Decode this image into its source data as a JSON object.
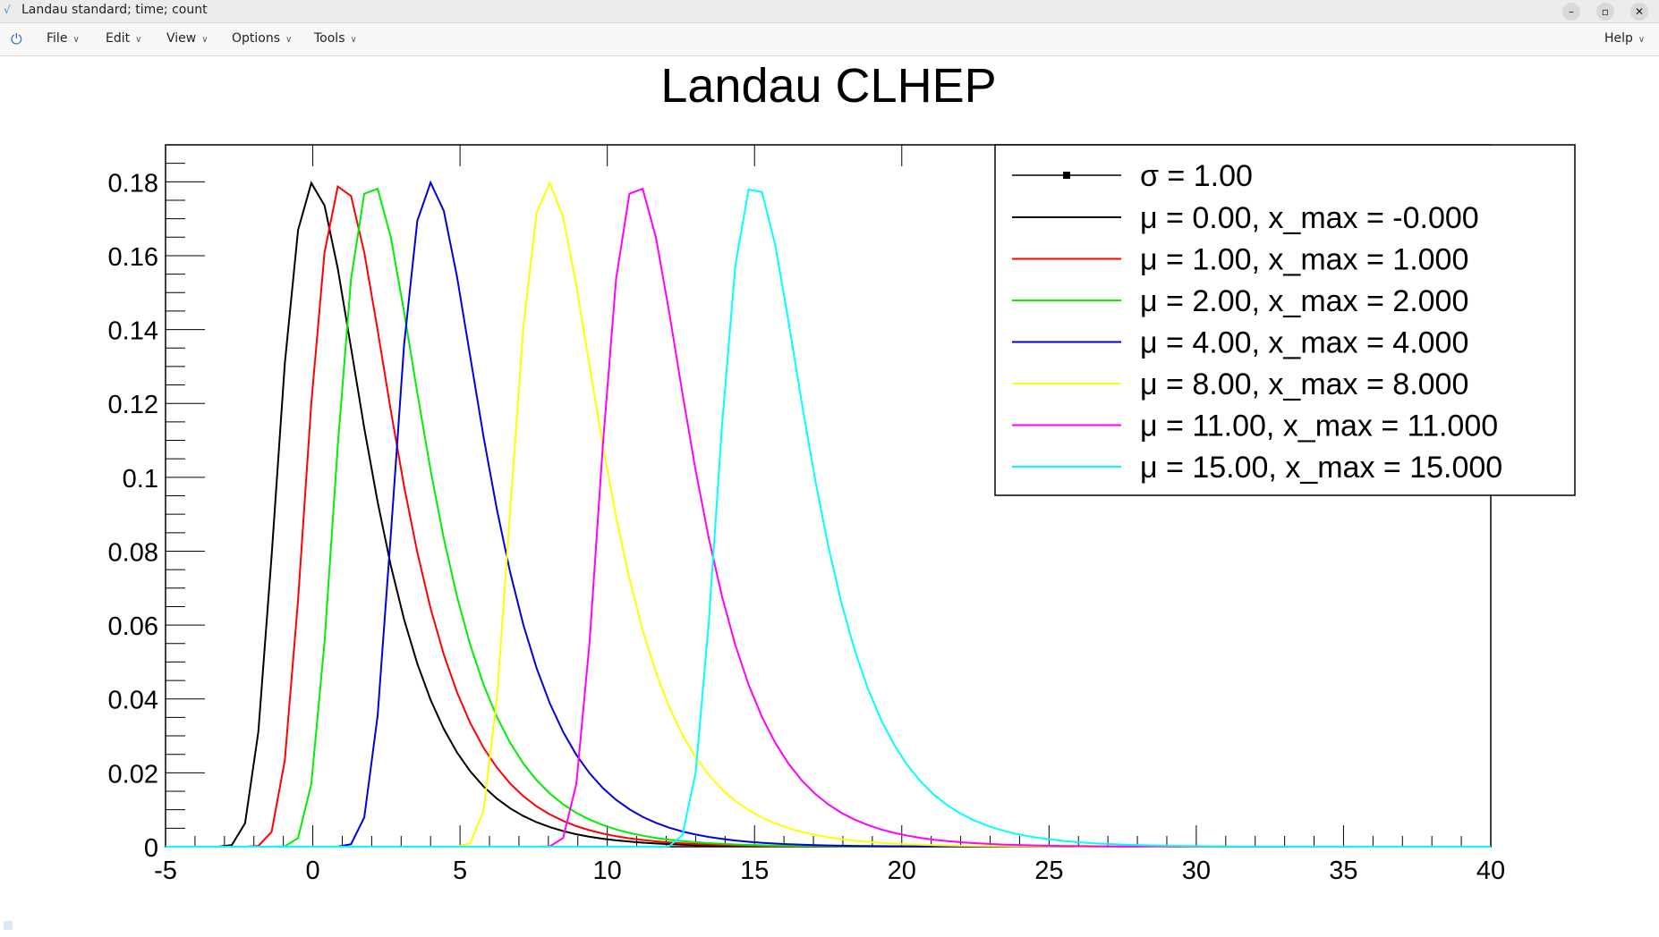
{
  "window": {
    "title": "Landau standard; time; count"
  },
  "menu": {
    "items": [
      "File",
      "Edit",
      "View",
      "Options",
      "Tools"
    ],
    "help": "Help"
  },
  "chart_data": {
    "type": "line",
    "title": "Landau CLHEP",
    "xlim": [
      -5,
      40
    ],
    "ylim": [
      0,
      0.19
    ],
    "x_ticks": [
      "-5",
      "0",
      "5",
      "10",
      "15",
      "20",
      "25",
      "30",
      "35",
      "40"
    ],
    "y_ticks": [
      "0",
      "0.02",
      "0.04",
      "0.06",
      "0.08",
      "0.1",
      "0.12",
      "0.14",
      "0.16",
      "0.18"
    ],
    "grid": false,
    "legend_position": "top-right",
    "legend_header": "σ = 1.00",
    "series": [
      {
        "name": "μ = 0.00, x_max = -0.000",
        "mu": 0,
        "color": "#000000"
      },
      {
        "name": "μ = 1.00, x_max = 1.000",
        "mu": 1,
        "color": "#ff0000"
      },
      {
        "name": "μ = 2.00, x_max = 2.000",
        "mu": 2,
        "color": "#00ee00"
      },
      {
        "name": "μ = 4.00, x_max = 4.000",
        "mu": 4,
        "color": "#0000dd"
      },
      {
        "name": "μ = 8.00, x_max = 8.000",
        "mu": 8,
        "color": "#ffff00"
      },
      {
        "name": "μ = 11.00, x_max = 11.000",
        "mu": 11,
        "color": "#ff00ff"
      },
      {
        "name": "μ = 15.00, x_max = 15.000",
        "mu": 15,
        "color": "#00ffff"
      }
    ]
  }
}
